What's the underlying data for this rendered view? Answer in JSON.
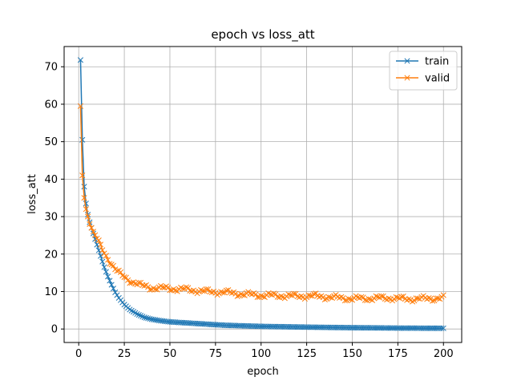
{
  "chart_data": {
    "type": "line",
    "title": "epoch vs loss_att",
    "xlabel": "epoch",
    "ylabel": "loss_att",
    "xlim": [
      -8,
      210
    ],
    "ylim": [
      -3.6,
      75.4
    ],
    "xticks": [
      0,
      25,
      50,
      75,
      100,
      125,
      150,
      175,
      200
    ],
    "yticks": [
      0,
      10,
      20,
      30,
      40,
      50,
      60,
      70
    ],
    "grid": true,
    "legend_position": "top-right",
    "marker": "x",
    "x": {
      "start": 1,
      "end": 200,
      "step": 1
    },
    "series": [
      {
        "name": "train",
        "color": "#1f77b4",
        "anchors": [
          [
            1,
            71.8
          ],
          [
            2,
            50.5
          ],
          [
            3,
            38.0
          ],
          [
            4,
            33.5
          ],
          [
            5,
            30.5
          ],
          [
            6,
            28.5
          ],
          [
            8,
            25.5
          ],
          [
            10,
            22.5
          ],
          [
            12,
            19.5
          ],
          [
            14,
            16.5
          ],
          [
            16,
            14.0
          ],
          [
            18,
            11.8
          ],
          [
            20,
            9.8
          ],
          [
            22,
            8.3
          ],
          [
            25,
            6.5
          ],
          [
            28,
            5.2
          ],
          [
            32,
            4.0
          ],
          [
            36,
            3.1
          ],
          [
            40,
            2.6
          ],
          [
            45,
            2.2
          ],
          [
            50,
            1.9
          ],
          [
            60,
            1.6
          ],
          [
            70,
            1.3
          ],
          [
            80,
            1.0
          ],
          [
            100,
            0.7
          ],
          [
            125,
            0.5
          ],
          [
            150,
            0.35
          ],
          [
            175,
            0.25
          ],
          [
            200,
            0.2
          ]
        ]
      },
      {
        "name": "valid",
        "color": "#ff7f0e",
        "anchors": [
          [
            1,
            59.5
          ],
          [
            2,
            41.0
          ],
          [
            3,
            35.0
          ],
          [
            4,
            32.0
          ],
          [
            5,
            30.0
          ],
          [
            6,
            28.0
          ],
          [
            8,
            26.0
          ],
          [
            10,
            24.0
          ],
          [
            12,
            22.0
          ],
          [
            15,
            19.5
          ],
          [
            18,
            17.5
          ],
          [
            20,
            16.0
          ],
          [
            23,
            14.5
          ],
          [
            26,
            13.5
          ],
          [
            30,
            12.5
          ],
          [
            35,
            11.5
          ],
          [
            40,
            11.0
          ],
          [
            50,
            10.8
          ],
          [
            60,
            10.5
          ],
          [
            70,
            10.0
          ],
          [
            80,
            9.8
          ],
          [
            90,
            9.3
          ],
          [
            100,
            9.0
          ],
          [
            110,
            8.9
          ],
          [
            120,
            8.8
          ],
          [
            130,
            8.8
          ],
          [
            140,
            8.4
          ],
          [
            150,
            8.1
          ],
          [
            160,
            8.2
          ],
          [
            170,
            8.3
          ],
          [
            180,
            8.0
          ],
          [
            190,
            8.1
          ],
          [
            200,
            8.3
          ]
        ],
        "noise": 0.55
      }
    ]
  }
}
